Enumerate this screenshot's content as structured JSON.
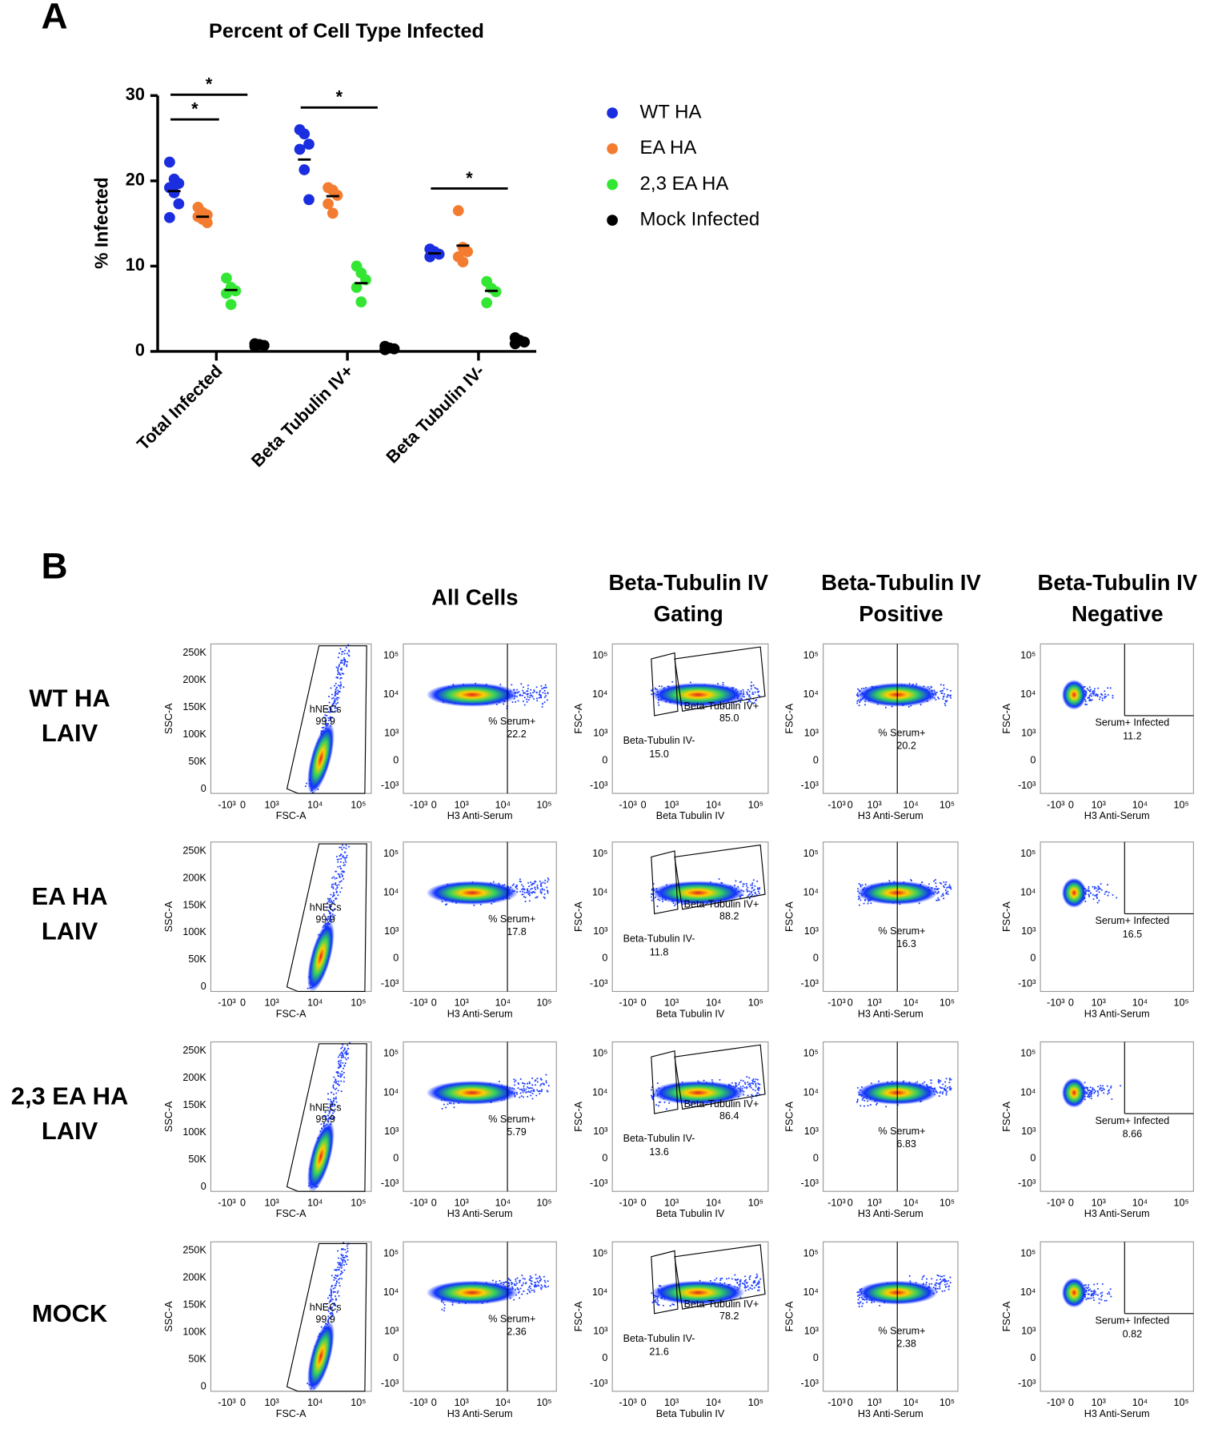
{
  "panel_labels": [
    "A",
    "B"
  ],
  "chart_data": {
    "type": "strip",
    "title": "Percent of Cell Type Infected",
    "y_label": "% Infected",
    "categories": [
      "Total Infected",
      "Beta Tubulin IV+",
      "Beta Tubulin IV-"
    ],
    "ylim": [
      0,
      30
    ],
    "yticks": [
      0,
      10,
      20,
      30
    ],
    "legend": "right",
    "series": [
      {
        "name": "WT HA",
        "color": "#1a2ee0",
        "values": [
          18.8,
          22.5,
          11.5
        ],
        "points": [
          [
            22.2,
            20.2,
            19.7,
            19.2,
            18.6,
            17.3,
            15.7
          ],
          [
            26,
            25.5,
            24.3,
            23.7,
            21.3,
            17.8
          ],
          [
            12,
            11.7,
            11.4,
            11.1
          ]
        ]
      },
      {
        "name": "EA HA",
        "color": "#f47c30",
        "values": [
          15.8,
          18.2,
          12.4
        ],
        "points": [
          [
            16.9,
            16.3,
            16,
            15.8,
            15.5,
            15.1
          ],
          [
            19.2,
            18.9,
            18.3,
            17.3,
            16.2
          ],
          [
            16.5,
            12.2,
            11.7,
            11.1,
            10.5
          ]
        ]
      },
      {
        "name": "2,3 EA HA",
        "color": "#33e633",
        "values": [
          7.2,
          8,
          7.1
        ],
        "points": [
          [
            8.6,
            7.5,
            7.1,
            6.8,
            5.5
          ],
          [
            10,
            9.2,
            8.4,
            7.5,
            5.8
          ],
          [
            8.2,
            7.4,
            7,
            5.7
          ]
        ]
      },
      {
        "name": "Mock Infected",
        "color": "#000000",
        "values": [
          0.8,
          0.4,
          1.2
        ],
        "points": [
          [
            0.9,
            0.8,
            0.7,
            0.6
          ],
          [
            0.6,
            0.4,
            0.3,
            0.2
          ],
          [
            1.6,
            1.3,
            1.1,
            0.9
          ]
        ]
      }
    ],
    "annotations": [
      {
        "text": "*",
        "category": 0,
        "series": [
          0,
          1
        ],
        "y": 27.2
      },
      {
        "text": "*",
        "category": 0,
        "series": [
          0,
          2
        ],
        "y": 30.1
      },
      {
        "text": "*",
        "category": 1,
        "series": [
          0,
          2
        ],
        "y": 28.6
      },
      {
        "text": "*",
        "category": 2,
        "series": [
          0,
          2
        ],
        "y": 19.1
      }
    ]
  },
  "flow": {
    "columns": [
      [
        "All Cells"
      ],
      [
        "Beta-Tubulin IV",
        "Gating"
      ],
      [
        "Beta-Tubulin IV",
        "Positive"
      ],
      [
        "Beta-Tubulin IV",
        "Negative"
      ]
    ],
    "rows": [
      {
        "label": [
          "WT HA",
          "LAIV"
        ],
        "gates": [
          "99.9",
          "22.2",
          "85.0",
          "15.0",
          "20.2",
          "11.2"
        ]
      },
      {
        "label": [
          "EA HA",
          "LAIV"
        ],
        "gates": [
          "99.9",
          "17.8",
          "88.2",
          "11.8",
          "16.3",
          "16.5"
        ]
      },
      {
        "label": [
          "2,3 EA HA",
          "LAIV"
        ],
        "gates": [
          "99.9",
          "5.79",
          "86.4",
          "13.6",
          "6.83",
          "8.66"
        ]
      },
      {
        "label": [
          "MOCK"
        ],
        "gates": [
          "99.9",
          "2.36",
          "78.2",
          "21.6",
          "2.38",
          "0.82"
        ]
      }
    ],
    "gate_names": [
      "hNECs",
      "% Serum+",
      "Beta-Tubulin IV+",
      "Beta-Tubulin IV-",
      "% Serum+",
      "Serum+ Infected"
    ],
    "axis_labels": {
      "ssc": "SSC-A",
      "fsc": "FSC-A",
      "h3": "H3 Anti-Serum",
      "bt": "Beta Tubulin IV"
    },
    "linear_ticks": [
      "250K",
      "200K",
      "150K",
      "100K",
      "50K",
      "0"
    ],
    "log_ticks": [
      "-10³",
      "0",
      "10³",
      "10⁴",
      "10⁵"
    ]
  }
}
